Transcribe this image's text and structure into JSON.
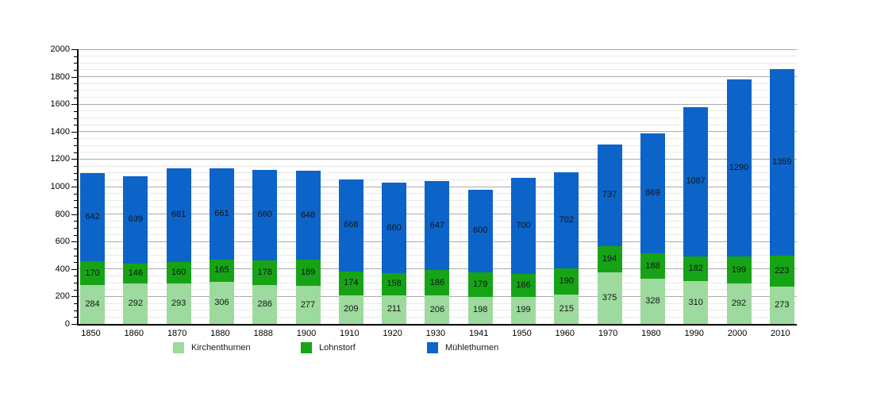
{
  "chart_data": {
    "type": "bar",
    "stacked": true,
    "title": "",
    "categories": [
      "1850",
      "1860",
      "1870",
      "1880",
      "1888",
      "1900",
      "1910",
      "1920",
      "1930",
      "1941",
      "1950",
      "1960",
      "1970",
      "1980",
      "1990",
      "2000",
      "2010"
    ],
    "series": [
      {
        "name": "Kirchenthurnen",
        "color": "#9dda9d",
        "values": [
          284,
          292,
          293,
          306,
          286,
          277,
          209,
          211,
          206,
          198,
          199,
          215,
          375,
          328,
          310,
          292,
          273
        ]
      },
      {
        "name": "Lohnstorf",
        "color": "#16a316",
        "values": [
          170,
          146,
          160,
          165,
          178,
          189,
          174,
          158,
          186,
          179,
          166,
          190,
          194,
          188,
          182,
          199,
          223
        ]
      },
      {
        "name": "Mühlethurnen",
        "color": "#0d64c8",
        "values": [
          642,
          639,
          681,
          661,
          660,
          648,
          668,
          660,
          647,
          600,
          700,
          702,
          737,
          869,
          1087,
          1290,
          1359
        ]
      }
    ],
    "xlabel": "",
    "ylabel": "",
    "ylim": [
      0,
      2000
    ],
    "y_ticks": [
      0,
      200,
      400,
      600,
      800,
      1000,
      1200,
      1400,
      1600,
      1800,
      2000
    ],
    "y_minor_step": 50,
    "y_major_step": 200,
    "grid": "horizontal",
    "legend_position": "bottom",
    "bar_value_labels": true
  },
  "colors": {
    "background": "#ffffff",
    "axis": "#000000",
    "gridline_major": "#ababab",
    "gridline_minor": "#e9e9e9",
    "value_label_text": "#101418"
  },
  "legend": {
    "items": [
      "Kirchenthurnen",
      "Lohnstorf",
      "Mühlethurnen"
    ]
  }
}
